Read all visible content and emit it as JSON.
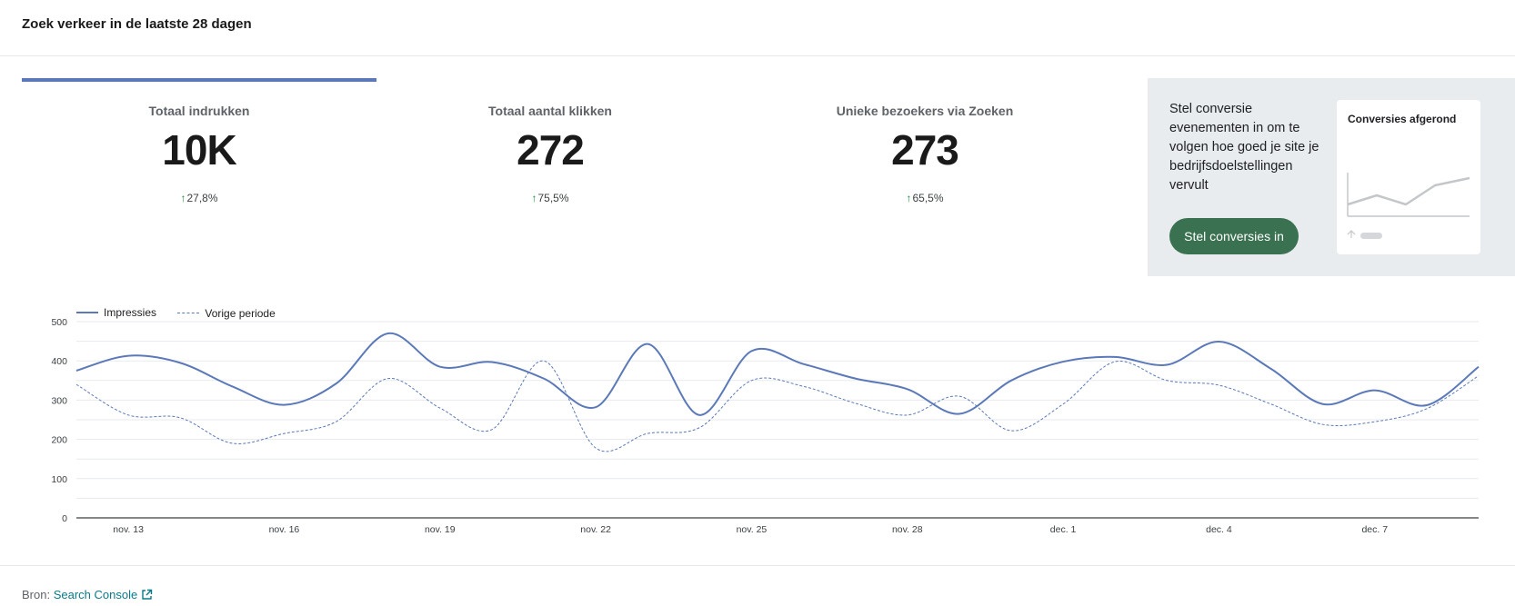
{
  "header": {
    "title": "Zoek verkeer in de laatste 28 dagen"
  },
  "kpis": [
    {
      "label": "Totaal indrukken",
      "value": "10K",
      "delta": "27,8%",
      "active": true
    },
    {
      "label": "Totaal aantal klikken",
      "value": "272",
      "delta": "75,5%",
      "active": false
    },
    {
      "label": "Unieke bezoekers via Zoeken",
      "value": "273",
      "delta": "65,5%",
      "active": false
    }
  ],
  "promo": {
    "text": "Stel conversie evenementen in om te volgen hoe goed je site je bedrijfsdoelstellingen vervult",
    "button_label": "Stel conversies in",
    "card_title": "Conversies afgerond"
  },
  "footer": {
    "source_prefix": "Bron:",
    "source_link": "Search Console"
  },
  "colors": {
    "series": "#5b79b8",
    "cta": "#3a7150",
    "positive": "#1e8e3e",
    "promo_bg": "#e8ecee"
  },
  "chart_data": {
    "type": "line",
    "title": "",
    "xlabel": "",
    "ylabel": "",
    "ylim": [
      0,
      500
    ],
    "yticks": [
      0,
      100,
      200,
      300,
      400,
      500
    ],
    "grid": true,
    "legend_position": "top-left",
    "x": [
      "nov. 12",
      "nov. 13",
      "nov. 14",
      "nov. 15",
      "nov. 16",
      "nov. 17",
      "nov. 18",
      "nov. 19",
      "nov. 20",
      "nov. 21",
      "nov. 22",
      "nov. 23",
      "nov. 24",
      "nov. 25",
      "nov. 26",
      "nov. 27",
      "nov. 28",
      "nov. 29",
      "nov. 30",
      "dec. 1",
      "dec. 2",
      "dec. 3",
      "dec. 4",
      "dec. 5",
      "dec. 6",
      "dec. 7",
      "dec. 8",
      "dec. 9"
    ],
    "x_tick_labels": [
      "nov. 13",
      "nov. 16",
      "nov. 19",
      "nov. 22",
      "nov. 25",
      "nov. 28",
      "dec. 1",
      "dec. 4",
      "dec. 7"
    ],
    "series": [
      {
        "name": "Impressies",
        "style": "solid",
        "values": [
          375,
          413,
          395,
          335,
          288,
          342,
          470,
          385,
          397,
          355,
          282,
          443,
          262,
          425,
          392,
          355,
          328,
          265,
          350,
          398,
          410,
          390,
          449,
          380,
          290,
          325,
          287,
          385
        ]
      },
      {
        "name": "Vorige periode",
        "style": "dashed",
        "values": [
          340,
          262,
          255,
          190,
          215,
          245,
          355,
          280,
          225,
          400,
          178,
          215,
          230,
          350,
          335,
          292,
          262,
          310,
          222,
          290,
          398,
          350,
          338,
          290,
          238,
          245,
          278,
          362
        ]
      }
    ]
  }
}
